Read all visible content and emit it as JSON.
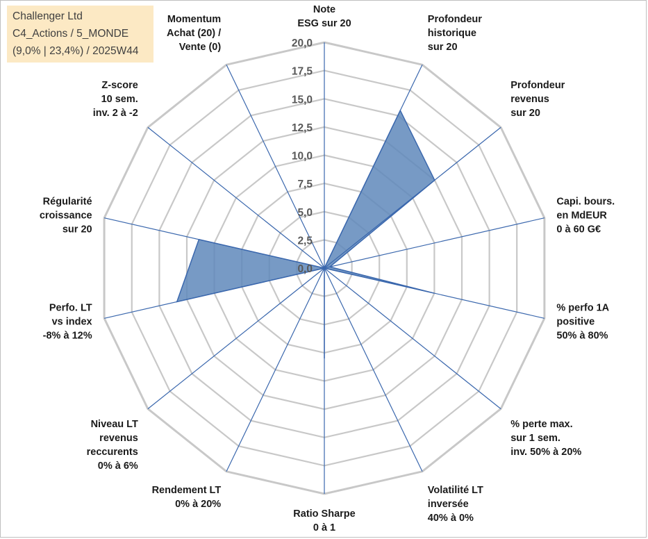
{
  "info": {
    "line1": "Challenger Ltd",
    "line2": "C4_Actions / 5_MONDE",
    "line3": "(9,0% | 23,4%) / 2025W44"
  },
  "colors": {
    "grid": "#c8c8c8",
    "spoke": "#3a67ad",
    "fill": "#5f88bb",
    "fill_stroke": "#3a67ad"
  },
  "chart_data": {
    "type": "radar",
    "title": "",
    "rmin": 0,
    "rmax": 20,
    "tick_step": 2.5,
    "tick_labels": [
      "0,0",
      "2,5",
      "5,0",
      "7,5",
      "10,0",
      "12,5",
      "15,0",
      "17,5",
      "20,0"
    ],
    "axes": [
      {
        "label": [
          "Note",
          "ESG sur 20"
        ],
        "value": 0
      },
      {
        "label": [
          "Profondeur",
          "historique",
          "sur 20"
        ],
        "value": 15.5
      },
      {
        "label": [
          "Profondeur",
          "revenus",
          "sur 20"
        ],
        "value": 12.5
      },
      {
        "label": [
          "Capi. bours.",
          "en MdEUR",
          "0 à 60 G€"
        ],
        "value": 0.5
      },
      {
        "label": [
          "% perfo 1A",
          "positive",
          "50% à 80%"
        ],
        "value": 10
      },
      {
        "label": [
          "% perte max.",
          "sur 1 sem.",
          "inv. 50% à 20%"
        ],
        "value": 0
      },
      {
        "label": [
          "Volatilité LT",
          "inversée",
          "40% à 0%"
        ],
        "value": 0
      },
      {
        "label": [
          "Ratio Sharpe",
          "0 à 1"
        ],
        "value": 8
      },
      {
        "label": [
          "Rendement LT",
          "0% à 20%"
        ],
        "value": 0
      },
      {
        "label": [
          "Niveau LT",
          "revenus",
          "reccurents",
          "0% à 6%"
        ],
        "value": 0
      },
      {
        "label": [
          "Perfo. LT",
          "vs index",
          "-8% à 12%"
        ],
        "value": 13.4
      },
      {
        "label": [
          "Régularité",
          "croissance",
          "sur 20"
        ],
        "value": 11.4
      },
      {
        "label": [
          "Z-score",
          "10 sem.",
          "inv. 2 à -2"
        ],
        "value": 0
      },
      {
        "label": [
          "Momentum",
          "Achat (20) /",
          "Vente (0)"
        ],
        "value": 0
      }
    ]
  }
}
